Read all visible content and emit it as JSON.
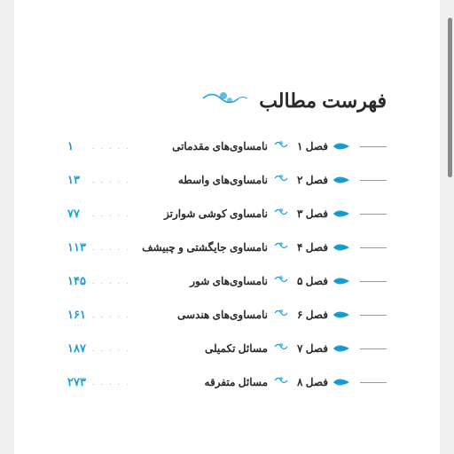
{
  "title": "فهرست مطالب",
  "accent_color": "#1a9fd9",
  "text_color": "#2a2a2a",
  "chapters": [
    {
      "label": "فصل ۱",
      "title": "نامساوی‌های مقدماتی",
      "page": "۱"
    },
    {
      "label": "فصل ۲",
      "title": "نامساوی‌های واسطه",
      "page": "۱۳"
    },
    {
      "label": "فصل ۳",
      "title": "نامساوی کوشی شوارتز",
      "page": "۷۷"
    },
    {
      "label": "فصل ۴",
      "title": "نامساوی جایگشتی و چبیشف",
      "page": "۱۱۳"
    },
    {
      "label": "فصل ۵",
      "title": "نامساوی‌های شور",
      "page": "۱۴۵"
    },
    {
      "label": "فصل ۶",
      "title": "نامساوی‌های هندسی",
      "page": "۱۶۱"
    },
    {
      "label": "فصل ۷",
      "title": "مسائل تکمیلی",
      "page": "۱۸۷"
    },
    {
      "label": "فصل ۸",
      "title": "مسائل متفرقه",
      "page": "۲۷۳"
    }
  ]
}
